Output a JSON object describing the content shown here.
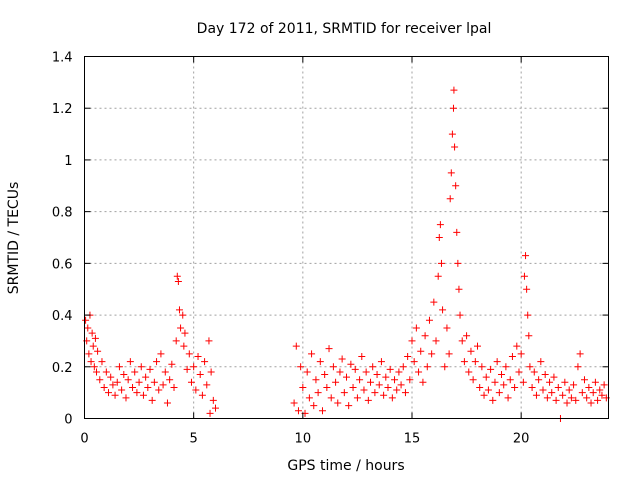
{
  "chart_data": {
    "type": "scatter",
    "title": "Day 172 of 2011, SRMTID for receiver lpal",
    "xlabel": "GPS time / hours",
    "ylabel": "SRMTID / TECUs",
    "xlim": [
      0,
      24
    ],
    "ylim": [
      0,
      1.4
    ],
    "xticks": [
      0,
      5,
      10,
      15,
      20
    ],
    "yticks": [
      0,
      0.2,
      0.4,
      0.6,
      0.8,
      1,
      1.2,
      1.4
    ],
    "xtick_labels": [
      "0",
      "5",
      "10",
      "15",
      "20"
    ],
    "ytick_labels": [
      "0",
      "0.2",
      "0.4",
      "0.6",
      "0.8",
      "1",
      "1.2",
      "1.4"
    ],
    "grid": true,
    "marker": "+",
    "series": [
      {
        "name": "SRMTID",
        "color": "#ff0000",
        "points": [
          [
            0.05,
            0.38
          ],
          [
            0.1,
            0.3
          ],
          [
            0.15,
            0.35
          ],
          [
            0.2,
            0.25
          ],
          [
            0.25,
            0.4
          ],
          [
            0.3,
            0.22
          ],
          [
            0.35,
            0.33
          ],
          [
            0.4,
            0.28
          ],
          [
            0.45,
            0.2
          ],
          [
            0.5,
            0.31
          ],
          [
            0.55,
            0.18
          ],
          [
            0.6,
            0.26
          ],
          [
            0.7,
            0.15
          ],
          [
            0.8,
            0.22
          ],
          [
            0.9,
            0.12
          ],
          [
            1.0,
            0.18
          ],
          [
            1.1,
            0.1
          ],
          [
            1.2,
            0.16
          ],
          [
            1.3,
            0.13
          ],
          [
            1.4,
            0.09
          ],
          [
            1.5,
            0.14
          ],
          [
            1.6,
            0.2
          ],
          [
            1.7,
            0.11
          ],
          [
            1.8,
            0.17
          ],
          [
            1.9,
            0.08
          ],
          [
            2.0,
            0.15
          ],
          [
            2.1,
            0.22
          ],
          [
            2.2,
            0.12
          ],
          [
            2.3,
            0.18
          ],
          [
            2.4,
            0.1
          ],
          [
            2.5,
            0.14
          ],
          [
            2.6,
            0.2
          ],
          [
            2.7,
            0.09
          ],
          [
            2.8,
            0.16
          ],
          [
            2.9,
            0.12
          ],
          [
            3.0,
            0.19
          ],
          [
            3.1,
            0.07
          ],
          [
            3.2,
            0.14
          ],
          [
            3.3,
            0.22
          ],
          [
            3.4,
            0.11
          ],
          [
            3.5,
            0.25
          ],
          [
            3.6,
            0.13
          ],
          [
            3.7,
            0.18
          ],
          [
            3.8,
            0.06
          ],
          [
            3.9,
            0.15
          ],
          [
            4.0,
            0.21
          ],
          [
            4.1,
            0.12
          ],
          [
            4.2,
            0.3
          ],
          [
            4.25,
            0.55
          ],
          [
            4.3,
            0.53
          ],
          [
            4.35,
            0.42
          ],
          [
            4.4,
            0.35
          ],
          [
            4.5,
            0.4
          ],
          [
            4.55,
            0.28
          ],
          [
            4.6,
            0.33
          ],
          [
            4.7,
            0.19
          ],
          [
            4.8,
            0.25
          ],
          [
            4.9,
            0.14
          ],
          [
            5.0,
            0.2
          ],
          [
            5.1,
            0.11
          ],
          [
            5.2,
            0.24
          ],
          [
            5.3,
            0.17
          ],
          [
            5.4,
            0.09
          ],
          [
            5.5,
            0.22
          ],
          [
            5.6,
            0.13
          ],
          [
            5.7,
            0.3
          ],
          [
            5.75,
            0.02
          ],
          [
            5.8,
            0.18
          ],
          [
            5.9,
            0.07
          ],
          [
            6.0,
            0.04
          ],
          [
            9.6,
            0.06
          ],
          [
            9.7,
            0.28
          ],
          [
            9.8,
            0.03
          ],
          [
            9.9,
            0.2
          ],
          [
            10.0,
            0.12
          ],
          [
            10.1,
            0.02
          ],
          [
            10.2,
            0.18
          ],
          [
            10.3,
            0.08
          ],
          [
            10.4,
            0.25
          ],
          [
            10.5,
            0.05
          ],
          [
            10.6,
            0.15
          ],
          [
            10.7,
            0.1
          ],
          [
            10.8,
            0.22
          ],
          [
            10.9,
            0.03
          ],
          [
            11.0,
            0.17
          ],
          [
            11.1,
            0.12
          ],
          [
            11.2,
            0.27
          ],
          [
            11.3,
            0.08
          ],
          [
            11.4,
            0.2
          ],
          [
            11.5,
            0.14
          ],
          [
            11.6,
            0.06
          ],
          [
            11.7,
            0.18
          ],
          [
            11.8,
            0.23
          ],
          [
            11.9,
            0.1
          ],
          [
            12.0,
            0.16
          ],
          [
            12.1,
            0.05
          ],
          [
            12.2,
            0.21
          ],
          [
            12.3,
            0.12
          ],
          [
            12.4,
            0.19
          ],
          [
            12.5,
            0.08
          ],
          [
            12.6,
            0.15
          ],
          [
            12.7,
            0.24
          ],
          [
            12.8,
            0.11
          ],
          [
            12.9,
            0.18
          ],
          [
            13.0,
            0.07
          ],
          [
            13.1,
            0.14
          ],
          [
            13.2,
            0.2
          ],
          [
            13.3,
            0.1
          ],
          [
            13.4,
            0.17
          ],
          [
            13.5,
            0.13
          ],
          [
            13.6,
            0.22
          ],
          [
            13.7,
            0.09
          ],
          [
            13.8,
            0.16
          ],
          [
            13.9,
            0.12
          ],
          [
            14.0,
            0.19
          ],
          [
            14.1,
            0.08
          ],
          [
            14.2,
            0.15
          ],
          [
            14.3,
            0.11
          ],
          [
            14.4,
            0.18
          ],
          [
            14.5,
            0.13
          ],
          [
            14.6,
            0.2
          ],
          [
            14.7,
            0.1
          ],
          [
            14.8,
            0.24
          ],
          [
            14.9,
            0.15
          ],
          [
            15.0,
            0.3
          ],
          [
            15.1,
            0.22
          ],
          [
            15.2,
            0.35
          ],
          [
            15.3,
            0.18
          ],
          [
            15.4,
            0.26
          ],
          [
            15.5,
            0.14
          ],
          [
            15.6,
            0.32
          ],
          [
            15.7,
            0.2
          ],
          [
            15.8,
            0.38
          ],
          [
            15.9,
            0.25
          ],
          [
            16.0,
            0.45
          ],
          [
            16.1,
            0.3
          ],
          [
            16.2,
            0.55
          ],
          [
            16.25,
            0.7
          ],
          [
            16.3,
            0.75
          ],
          [
            16.35,
            0.6
          ],
          [
            16.4,
            0.42
          ],
          [
            16.5,
            0.2
          ],
          [
            16.6,
            0.35
          ],
          [
            16.7,
            0.25
          ],
          [
            16.75,
            0.85
          ],
          [
            16.8,
            0.95
          ],
          [
            16.85,
            1.1
          ],
          [
            16.9,
            1.2
          ],
          [
            16.92,
            1.27
          ],
          [
            16.95,
            1.05
          ],
          [
            17.0,
            0.9
          ],
          [
            17.05,
            0.72
          ],
          [
            17.1,
            0.6
          ],
          [
            17.15,
            0.5
          ],
          [
            17.2,
            0.4
          ],
          [
            17.3,
            0.3
          ],
          [
            17.4,
            0.22
          ],
          [
            17.5,
            0.32
          ],
          [
            17.6,
            0.18
          ],
          [
            17.7,
            0.26
          ],
          [
            17.8,
            0.15
          ],
          [
            17.9,
            0.22
          ],
          [
            18.0,
            0.28
          ],
          [
            18.1,
            0.12
          ],
          [
            18.2,
            0.2
          ],
          [
            18.3,
            0.09
          ],
          [
            18.4,
            0.16
          ],
          [
            18.5,
            0.11
          ],
          [
            18.6,
            0.19
          ],
          [
            18.7,
            0.07
          ],
          [
            18.8,
            0.14
          ],
          [
            18.9,
            0.22
          ],
          [
            19.0,
            0.1
          ],
          [
            19.1,
            0.17
          ],
          [
            19.2,
            0.13
          ],
          [
            19.3,
            0.2
          ],
          [
            19.4,
            0.08
          ],
          [
            19.5,
            0.15
          ],
          [
            19.6,
            0.24
          ],
          [
            19.7,
            0.12
          ],
          [
            19.8,
            0.28
          ],
          [
            19.9,
            0.18
          ],
          [
            20.0,
            0.25
          ],
          [
            20.1,
            0.14
          ],
          [
            20.15,
            0.55
          ],
          [
            20.2,
            0.63
          ],
          [
            20.25,
            0.5
          ],
          [
            20.3,
            0.4
          ],
          [
            20.35,
            0.32
          ],
          [
            20.4,
            0.2
          ],
          [
            20.5,
            0.12
          ],
          [
            20.6,
            0.18
          ],
          [
            20.7,
            0.09
          ],
          [
            20.8,
            0.15
          ],
          [
            20.9,
            0.22
          ],
          [
            21.0,
            0.11
          ],
          [
            21.1,
            0.17
          ],
          [
            21.2,
            0.08
          ],
          [
            21.3,
            0.14
          ],
          [
            21.4,
            0.1
          ],
          [
            21.5,
            0.16
          ],
          [
            21.6,
            0.07
          ],
          [
            21.7,
            0.12
          ],
          [
            21.8,
            0.0
          ],
          [
            21.9,
            0.09
          ],
          [
            22.0,
            0.14
          ],
          [
            22.1,
            0.06
          ],
          [
            22.2,
            0.11
          ],
          [
            22.3,
            0.08
          ],
          [
            22.4,
            0.13
          ],
          [
            22.5,
            0.07
          ],
          [
            22.6,
            0.2
          ],
          [
            22.7,
            0.25
          ],
          [
            22.8,
            0.1
          ],
          [
            22.9,
            0.15
          ],
          [
            23.0,
            0.08
          ],
          [
            23.1,
            0.12
          ],
          [
            23.2,
            0.06
          ],
          [
            23.3,
            0.1
          ],
          [
            23.4,
            0.14
          ],
          [
            23.5,
            0.07
          ],
          [
            23.6,
            0.11
          ],
          [
            23.7,
            0.09
          ],
          [
            23.8,
            0.13
          ],
          [
            23.9,
            0.08
          ]
        ]
      }
    ]
  }
}
